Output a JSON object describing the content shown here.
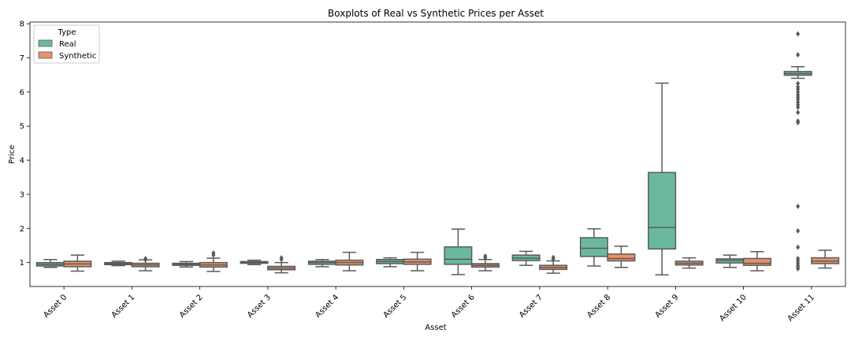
{
  "chart_data": {
    "type": "box",
    "title": "Boxplots of Real vs Synthetic Prices per Asset",
    "xlabel": "Asset",
    "ylabel": "Price",
    "ylim": [
      0.3,
      8.05
    ],
    "yticks": [
      1,
      2,
      3,
      4,
      5,
      6,
      7,
      8
    ],
    "legend": {
      "title": "Type",
      "position": "top-left"
    },
    "categories": [
      "Asset 0",
      "Asset 1",
      "Asset 2",
      "Asset 3",
      "Asset 4",
      "Asset 5",
      "Asset 6",
      "Asset 7",
      "Asset 8",
      "Asset 9",
      "Asset 10",
      "Asset 11"
    ],
    "series": [
      {
        "name": "Real",
        "color": "#6ab99e",
        "boxes": [
          {
            "whisker_low": 0.86,
            "q1": 0.9,
            "median": 0.95,
            "q3": 1.0,
            "whisker_high": 1.09,
            "outliers": []
          },
          {
            "whisker_low": 0.91,
            "q1": 0.94,
            "median": 0.97,
            "q3": 1.0,
            "whisker_high": 1.04,
            "outliers": []
          },
          {
            "whisker_low": 0.87,
            "q1": 0.92,
            "median": 0.95,
            "q3": 0.98,
            "whisker_high": 1.03,
            "outliers": []
          },
          {
            "whisker_low": 0.94,
            "q1": 0.98,
            "median": 1.0,
            "q3": 1.03,
            "whisker_high": 1.07,
            "outliers": []
          },
          {
            "whisker_low": 0.88,
            "q1": 0.95,
            "median": 1.0,
            "q3": 1.04,
            "whisker_high": 1.09,
            "outliers": []
          },
          {
            "whisker_low": 0.88,
            "q1": 0.97,
            "median": 1.03,
            "q3": 1.09,
            "whisker_high": 1.14,
            "outliers": []
          },
          {
            "whisker_low": 0.65,
            "q1": 0.95,
            "median": 1.1,
            "q3": 1.46,
            "whisker_high": 1.98,
            "outliers": []
          },
          {
            "whisker_low": 0.92,
            "q1": 1.06,
            "median": 1.13,
            "q3": 1.22,
            "whisker_high": 1.33,
            "outliers": []
          },
          {
            "whisker_low": 0.9,
            "q1": 1.18,
            "median": 1.42,
            "q3": 1.73,
            "whisker_high": 1.99,
            "outliers": []
          },
          {
            "whisker_low": 0.64,
            "q1": 1.4,
            "median": 2.03,
            "q3": 3.64,
            "whisker_high": 6.26,
            "outliers": []
          },
          {
            "whisker_low": 0.86,
            "q1": 0.99,
            "median": 1.06,
            "q3": 1.11,
            "whisker_high": 1.22,
            "outliers": []
          },
          {
            "whisker_low": 6.4,
            "q1": 6.49,
            "median": 6.54,
            "q3": 6.6,
            "whisker_high": 6.74,
            "outliers": [
              7.7,
              7.09,
              6.25,
              6.15,
              6.08,
              6.0,
              5.92,
              5.85,
              5.78,
              5.7,
              5.62,
              5.55,
              5.4,
              5.15,
              5.1,
              2.65,
              1.93,
              1.45,
              1.12,
              1.05,
              0.98,
              0.92,
              0.87,
              0.82
            ]
          }
        ]
      },
      {
        "name": "Synthetic",
        "color": "#e9926a",
        "boxes": [
          {
            "whisker_low": 0.75,
            "q1": 0.88,
            "median": 0.96,
            "q3": 1.04,
            "whisker_high": 1.22,
            "outliers": []
          },
          {
            "whisker_low": 0.76,
            "q1": 0.88,
            "median": 0.93,
            "q3": 0.98,
            "whisker_high": 1.08,
            "outliers": [
              1.12,
              1.08
            ]
          },
          {
            "whisker_low": 0.74,
            "q1": 0.87,
            "median": 0.93,
            "q3": 1.0,
            "whisker_high": 1.13,
            "outliers": [
              1.28,
              1.22
            ]
          },
          {
            "whisker_low": 0.7,
            "q1": 0.79,
            "median": 0.84,
            "q3": 0.89,
            "whisker_high": 1.0,
            "outliers": [
              1.14,
              1.09
            ]
          },
          {
            "whisker_low": 0.76,
            "q1": 0.93,
            "median": 1.0,
            "q3": 1.07,
            "whisker_high": 1.3,
            "outliers": []
          },
          {
            "whisker_low": 0.76,
            "q1": 0.95,
            "median": 1.02,
            "q3": 1.1,
            "whisker_high": 1.3,
            "outliers": []
          },
          {
            "whisker_low": 0.76,
            "q1": 0.87,
            "median": 0.92,
            "q3": 0.97,
            "whisker_high": 1.09,
            "outliers": [
              1.19,
              1.14
            ]
          },
          {
            "whisker_low": 0.69,
            "q1": 0.8,
            "median": 0.86,
            "q3": 0.92,
            "whisker_high": 1.05,
            "outliers": [
              1.15,
              1.1
            ]
          },
          {
            "whisker_low": 0.86,
            "q1": 1.05,
            "median": 1.12,
            "q3": 1.25,
            "whisker_high": 1.48,
            "outliers": []
          },
          {
            "whisker_low": 0.84,
            "q1": 0.93,
            "median": 0.98,
            "q3": 1.04,
            "whisker_high": 1.14,
            "outliers": []
          },
          {
            "whisker_low": 0.76,
            "q1": 0.92,
            "median": 0.98,
            "q3": 1.12,
            "whisker_high": 1.32,
            "outliers": []
          },
          {
            "whisker_low": 0.84,
            "q1": 0.97,
            "median": 1.04,
            "q3": 1.14,
            "whisker_high": 1.36,
            "outliers": []
          }
        ]
      }
    ]
  },
  "colors": {
    "real": "#6ab99e",
    "synthetic": "#e9926a",
    "line": "#5a5a5a",
    "background": "#ffffff"
  }
}
